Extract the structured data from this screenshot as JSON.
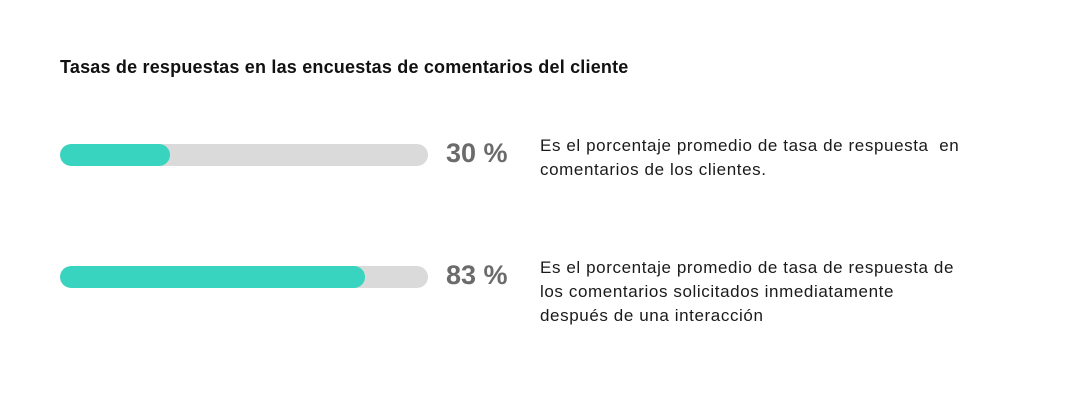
{
  "colors": {
    "bar_fill": "#38d4c0",
    "bar_track": "#dadada",
    "percent_text": "#6b6b6b"
  },
  "chart_data": {
    "type": "bar",
    "title": "Tasas de respuestas en las encuestas de comentarios del cliente",
    "ylim": [
      0,
      100
    ],
    "values": [
      30,
      83
    ],
    "value_labels": [
      "30 %",
      "83 %"
    ],
    "descriptions": [
      "Es el porcentaje promedio de tasa de respuesta  en\ncomentarios de los clientes.",
      "Es el porcentaje promedio de tasa de respuesta de\nlos comentarios solicitados inmediatamente\ndespués de una interacción"
    ]
  }
}
